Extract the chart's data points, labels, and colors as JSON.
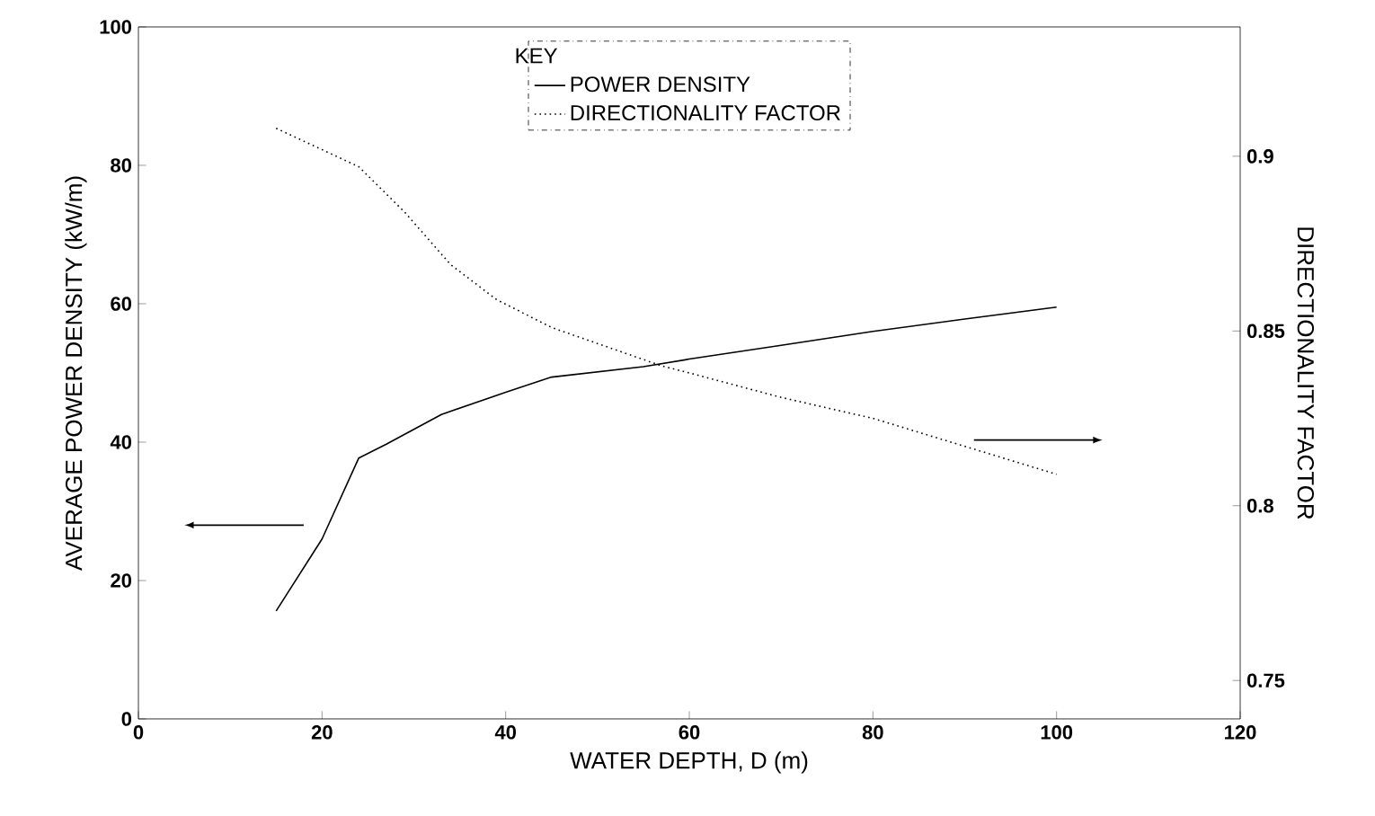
{
  "chart_data": {
    "type": "line",
    "xlabel": "WATER DEPTH, D (m)",
    "ylabel": "AVERAGE POWER DENSITY (kW/m)",
    "y2label": "DIRECTIONALITY FACTOR",
    "legend_title": "KEY",
    "xlim": [
      0,
      120
    ],
    "xticks": [
      0,
      20,
      40,
      60,
      80,
      100,
      120
    ],
    "ylim": [
      0,
      100
    ],
    "yticks": [
      0,
      20,
      40,
      60,
      80,
      100
    ],
    "y2lim": [
      0.739,
      0.937
    ],
    "y2ticks": [
      0.75,
      0.8,
      0.85,
      0.9
    ],
    "legend": "top",
    "series": [
      {
        "name": "POWER DENSITY",
        "color": "#000000",
        "line_style": "solid",
        "x": [
          15,
          20,
          24,
          27,
          33,
          40,
          45,
          55,
          60,
          70,
          80,
          90,
          100
        ],
        "values": [
          15.6,
          26,
          37.7,
          39.7,
          44,
          47.2,
          49.4,
          50.9,
          52,
          54,
          56,
          57.8,
          59.5
        ]
      },
      {
        "name": "DIRECTIONALITY FACTOR",
        "color": "#000000",
        "line_style": "dotted",
        "axis": "y2",
        "x": [
          15,
          24,
          29,
          34,
          39,
          45,
          57,
          60,
          70,
          80,
          90,
          100
        ],
        "values": [
          0.908,
          0.897,
          0.884,
          0.869,
          0.859,
          0.851,
          0.84,
          0.838,
          0.831,
          0.825,
          0.817,
          0.809
        ]
      }
    ]
  }
}
